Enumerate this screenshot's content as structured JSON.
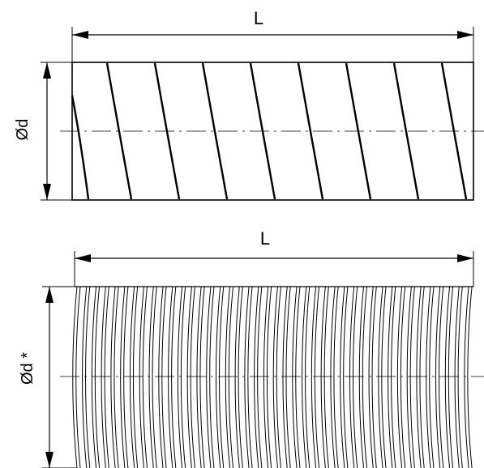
{
  "top_duct": {
    "length_label": "L",
    "diameter_label": "Ød",
    "helix_turns": 9
  },
  "bottom_duct": {
    "length_label": "L",
    "diameter_label": "Ød *",
    "rib_count": 42
  },
  "colors": {
    "line": "#000000",
    "background": "#ffffff"
  }
}
